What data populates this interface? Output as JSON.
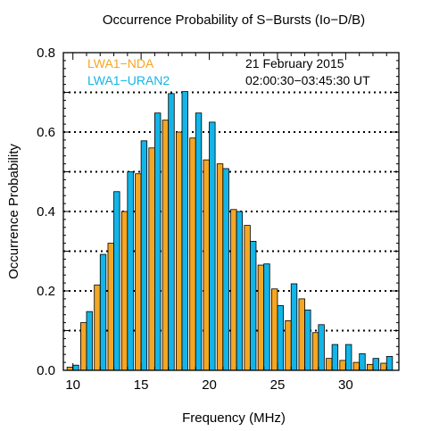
{
  "chart_data": {
    "type": "bar",
    "title": "Occurrence Probability of S−Bursts (Io−D/B)",
    "xlabel": "Frequency (MHz)",
    "ylabel": "Occurrence Probability",
    "xlim": [
      9.3,
      33.9
    ],
    "ylim": [
      0,
      0.8
    ],
    "x_ticks": [
      10,
      15,
      20,
      25,
      30
    ],
    "y_ticks": [
      0.0,
      0.2,
      0.4,
      0.6,
      0.8
    ],
    "y_tick_labels": [
      "0.0",
      "0.2",
      "0.4",
      "0.6",
      "0.8"
    ],
    "grid_y": [
      0.1,
      0.2,
      0.3,
      0.4,
      0.5,
      0.6,
      0.7
    ],
    "annotation": {
      "date": "21 February 2015",
      "time_range": "02:00:30−03:45:30 UT"
    },
    "x": [
      10,
      11,
      12,
      13,
      14,
      15,
      16,
      17,
      18,
      19,
      20,
      21,
      22,
      23,
      24,
      25,
      26,
      27,
      28,
      29,
      30,
      31,
      32,
      33
    ],
    "series": [
      {
        "name": "LWA1−NDA",
        "color": "#F5A623",
        "values": [
          0.008,
          0.12,
          0.215,
          0.32,
          0.4,
          0.495,
          0.56,
          0.63,
          0.6,
          0.585,
          0.53,
          0.52,
          0.405,
          0.365,
          0.265,
          0.205,
          0.125,
          0.18,
          0.095,
          0.03,
          0.025,
          0.02,
          0.015,
          0.018
        ]
      },
      {
        "name": "LWA1−URAN2",
        "color": "#12B5E8",
        "values": [
          0.013,
          0.148,
          0.292,
          0.45,
          0.5,
          0.578,
          0.648,
          0.697,
          0.702,
          0.648,
          0.625,
          0.508,
          0.4,
          0.325,
          0.268,
          0.163,
          0.218,
          0.152,
          0.115,
          0.065,
          0.065,
          0.042,
          0.03,
          0.035
        ]
      }
    ]
  }
}
